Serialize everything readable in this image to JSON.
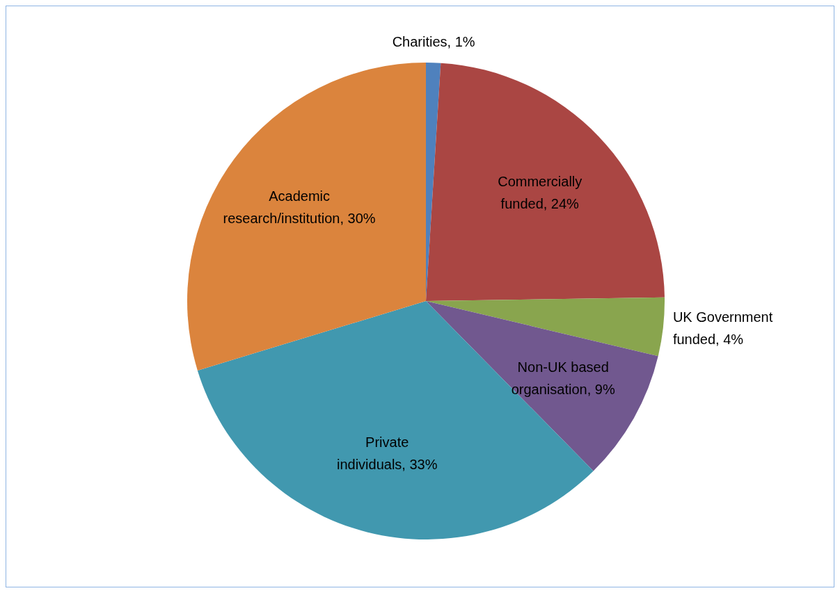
{
  "chart_data": {
    "type": "pie",
    "categories": [
      "Charities",
      "Commercially funded",
      "UK Government funded",
      "Non-UK based organisation",
      "Private individuals",
      "Academic research/institution"
    ],
    "values": [
      1,
      24,
      4,
      9,
      33,
      30
    ],
    "value_labels": [
      "1%",
      "24%",
      "4%",
      "9%",
      "33%",
      "30%"
    ],
    "colors": [
      "#4f81bd",
      "#aa4643",
      "#89a54e",
      "#71588f",
      "#4198af",
      "#db843d"
    ]
  }
}
